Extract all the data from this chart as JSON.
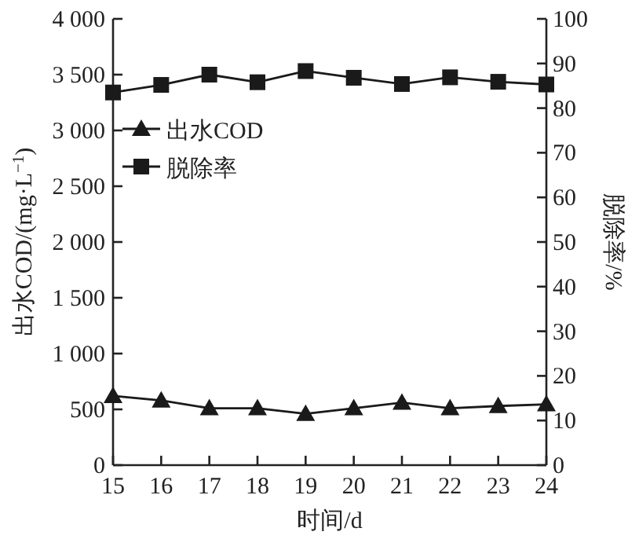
{
  "chart_data": {
    "type": "line",
    "xlabel": "时间/d",
    "ylabel": "出水COD/(mg·L$^{−1}$)",
    "y2label": "脱除率/%",
    "x": [
      15,
      16,
      17,
      18,
      19,
      20,
      21,
      22,
      23,
      24
    ],
    "xlim": [
      15,
      24
    ],
    "xticks": [
      15,
      16,
      17,
      18,
      19,
      20,
      21,
      22,
      23,
      24
    ],
    "ylim": [
      0,
      4000
    ],
    "yticks": [
      0,
      500,
      {
        "value": 1000,
        "label": "1 000"
      },
      {
        "value": 1500,
        "label": "1 500"
      },
      {
        "value": 2000,
        "label": "2 000"
      },
      {
        "value": 2500,
        "label": "2 500"
      },
      {
        "value": 3000,
        "label": "3 000"
      },
      {
        "value": 3500,
        "label": "3 500"
      },
      {
        "value": 4000,
        "label": "4 000"
      }
    ],
    "y2lim": [
      0,
      100
    ],
    "y2ticks": [
      0,
      10,
      20,
      30,
      40,
      50,
      60,
      70,
      80,
      90,
      100
    ],
    "series": [
      {
        "name": "出水COD",
        "color": "#1a1a1a",
        "marker": "triangle",
        "values": [
          620,
          580,
          510,
          510,
          460,
          510,
          560,
          510,
          530,
          545
        ]
      },
      {
        "name": "脱除率",
        "color": "#1a1a1a",
        "marker": "square",
        "axis": "y2",
        "values": [
          83.5,
          85.2,
          87.5,
          85.8,
          88.3,
          86.8,
          85.4,
          86.9,
          85.9,
          85.3
        ]
      }
    ],
    "grid": false,
    "legend": "top left",
    "line_style": "solid"
  }
}
